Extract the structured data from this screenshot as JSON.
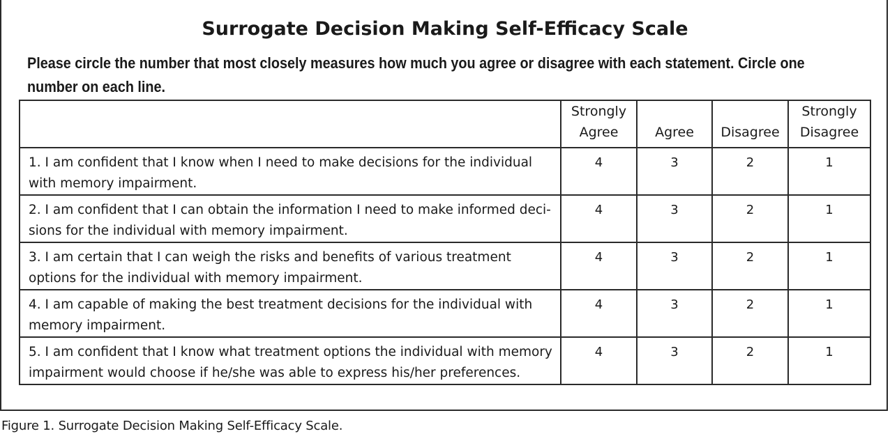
{
  "title": "Surrogate Decision Making Self-Efficacy Scale",
  "instructions": "Please circle the number that most closely measures how much you agree or disagree with each statement. Circle one number on each line.",
  "table": {
    "headers": [
      "",
      "Strongly Agree",
      "Agree",
      "Disagree",
      "Strongly Disagree"
    ],
    "rows": [
      {
        "statement": "1. I am confident that I know when I need to make decisions for the individual with memory impairment.",
        "values": [
          "4",
          "3",
          "2",
          "1"
        ]
      },
      {
        "statement": "2. I am confident that I can obtain the information I need to make informed deci-sions for the individual with memory impairment.",
        "values": [
          "4",
          "3",
          "2",
          "1"
        ]
      },
      {
        "statement": "3. I am certain that I can weigh the risks and benefits of various treatment options for the individual with memory impairment.",
        "values": [
          "4",
          "3",
          "2",
          "1"
        ]
      },
      {
        "statement": "4. I am capable of making the best treatment decisions for the individual with memory impairment.",
        "values": [
          "4",
          "3",
          "2",
          "1"
        ]
      },
      {
        "statement": "5. I am confident that I know what treatment options the individual with memory impairment would choose if he/she was able to express his/her preferences.",
        "values": [
          "4",
          "3",
          "2",
          "1"
        ]
      }
    ]
  },
  "caption": "Figure 1. Surrogate Decision Making Self-Efficacy Scale."
}
